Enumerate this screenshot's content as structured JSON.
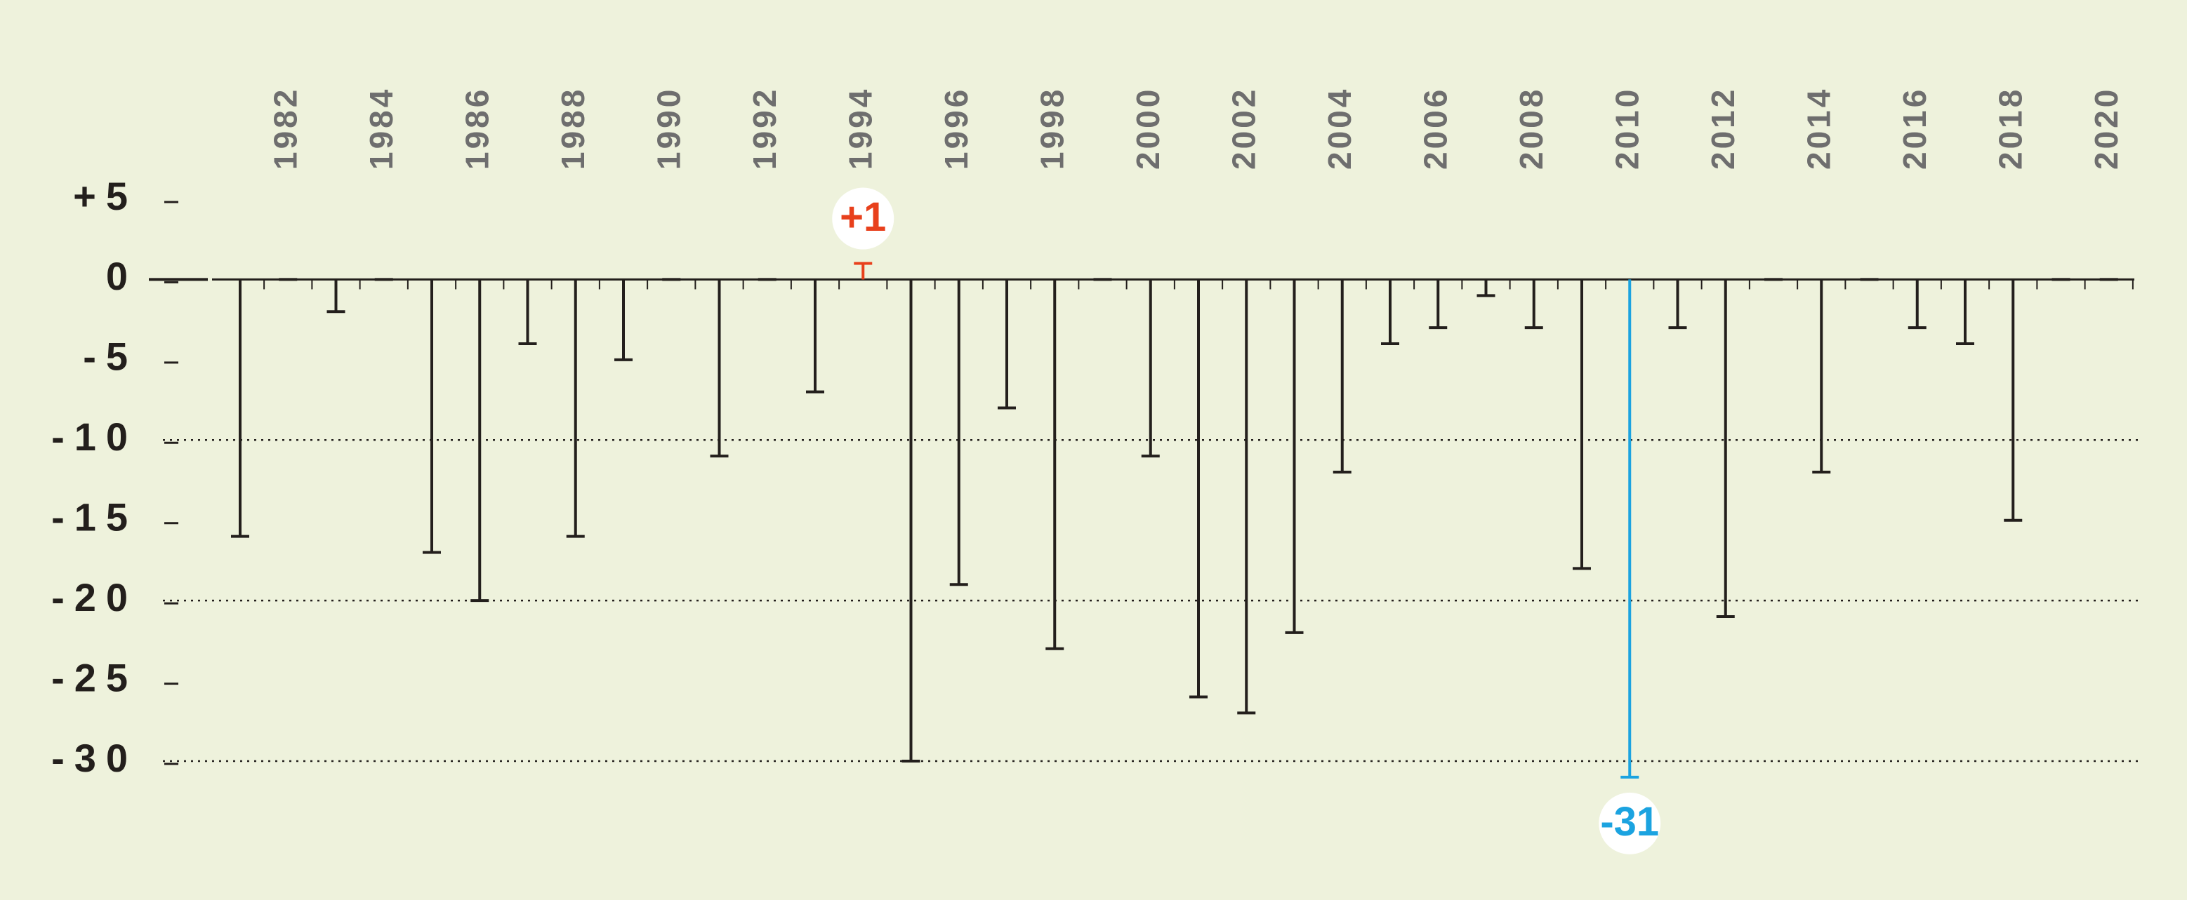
{
  "chart_data": {
    "type": "bar",
    "categories": [
      null,
      "1982",
      null,
      "1984",
      null,
      "1986",
      null,
      "1988",
      null,
      "1990",
      null,
      "1992",
      null,
      "1994",
      null,
      "1996",
      null,
      "1998",
      null,
      "2000",
      null,
      "2002",
      null,
      "2004",
      null,
      "2006",
      null,
      "2008",
      null,
      "2010",
      null,
      "2012",
      null,
      "2014",
      null,
      "2016",
      null,
      "2018",
      null,
      "2020"
    ],
    "values": [
      -16,
      0,
      -2,
      0,
      -17,
      -20,
      -4,
      -16,
      -5,
      0,
      -11,
      0,
      -7,
      1,
      -30,
      -19,
      -8,
      -23,
      0,
      -11,
      -26,
      -27,
      -22,
      -12,
      -4,
      -3,
      -1,
      -3,
      -18,
      -31,
      -3,
      -21,
      0,
      -12,
      0,
      -3,
      -4,
      -15,
      0,
      0
    ],
    "color": "#231f1c",
    "ylim": [
      -30,
      5
    ],
    "yticks": [
      {
        "value": 5,
        "label": "+5"
      },
      0,
      -5,
      -10,
      -15,
      -20,
      -25,
      -30
    ],
    "gridlines": [
      -10,
      -20,
      -30
    ],
    "highlights": [
      {
        "category": "1994",
        "label": "+1",
        "color": "#e8401c"
      },
      {
        "category": "2010",
        "label": "-31",
        "color": "#1ba3e0"
      }
    ]
  }
}
